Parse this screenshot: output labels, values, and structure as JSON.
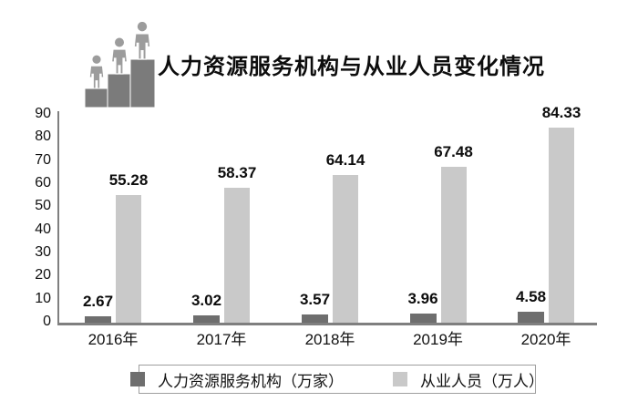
{
  "title": "人力资源服务机构与从业人员变化情况",
  "colors": {
    "institutions_bar": "#6e6e6e",
    "employees_bar": "#c9c9c9",
    "axis": "#7f7f7f",
    "text": "#111111",
    "legend_border": "#9e9e9e",
    "icon_people": "#9c9c9c",
    "icon_steps": "#7b7b7b"
  },
  "chart_data": {
    "type": "bar",
    "title": "人力资源服务机构与从业人员变化情况",
    "categories": [
      "2016年",
      "2017年",
      "2018年",
      "2019年",
      "2020年"
    ],
    "series": [
      {
        "name": "人力资源服务机构（万家）",
        "values": [
          2.67,
          3.02,
          3.57,
          3.96,
          4.58
        ],
        "color": "#6e6e6e"
      },
      {
        "name": "从业人员（万人）",
        "values": [
          55.28,
          58.37,
          64.14,
          67.48,
          84.33
        ],
        "color": "#c9c9c9"
      }
    ],
    "xlabel": "",
    "ylabel": "",
    "ylim": [
      0,
      90
    ],
    "yticks": [
      0,
      10,
      20,
      30,
      40,
      50,
      60,
      70,
      80,
      90
    ],
    "grid": false,
    "value_labels": true,
    "legend_position": "bottom"
  },
  "legend": {
    "items": [
      {
        "label": "人力资源服务机构（万家）"
      },
      {
        "label": "从业人员（万人）"
      }
    ]
  }
}
